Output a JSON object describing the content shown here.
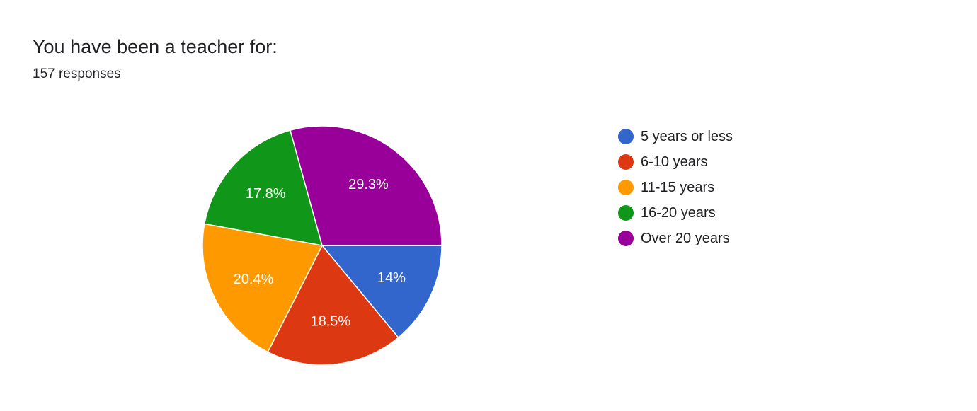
{
  "header": {
    "title": "You have been a teacher for:",
    "subtitle": "157 responses"
  },
  "chart_data": {
    "type": "pie",
    "title": "You have been a teacher for:",
    "categories": [
      "5 years or less",
      "6-10 years",
      "11-15 years",
      "16-20 years",
      "Over 20 years"
    ],
    "values": [
      14,
      18.5,
      20.4,
      17.8,
      29.3
    ],
    "value_labels": [
      "14%",
      "18.5%",
      "20.4%",
      "17.8%",
      "29.3%"
    ],
    "colors": [
      "#3366cc",
      "#dc3912",
      "#ff9900",
      "#109618",
      "#990099"
    ],
    "legend_position": "right"
  }
}
